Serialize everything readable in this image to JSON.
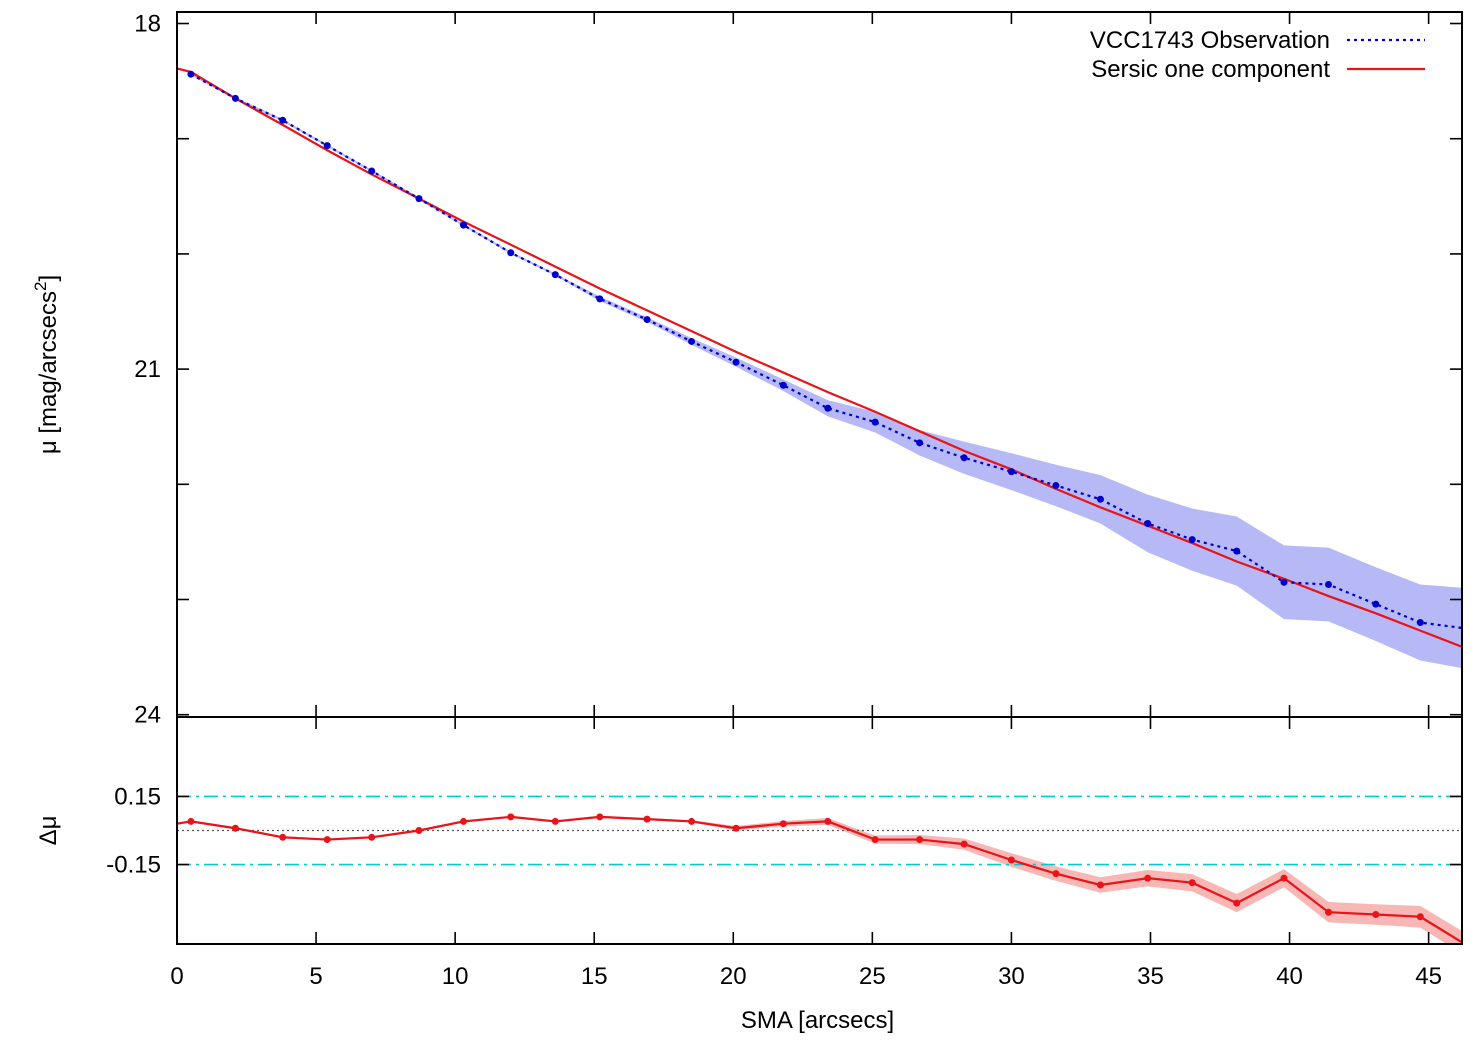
{
  "chart_data": [
    {
      "type": "line",
      "panel": "profile",
      "ylabel_main": "μ [mag/arcsecs",
      "ylabel_sup": "2",
      "ylabel_close": "]",
      "xlim": [
        0,
        46.2
      ],
      "ylim": [
        24,
        18
      ],
      "y_inverted": true,
      "yticks": [
        18,
        21,
        24
      ],
      "ytick_labels": [
        "18",
        "21",
        "24"
      ],
      "yminor_ticks": [
        19,
        20,
        22,
        23
      ],
      "legend_position": "top-right",
      "series": [
        {
          "name": "VCC1743 Observation",
          "color": "#0000cc",
          "band_color": "#b6b9f5",
          "style": "dotted-with-points",
          "x": [
            0.5,
            2.1,
            3.8,
            5.4,
            7.0,
            8.7,
            10.3,
            12.0,
            13.6,
            15.2,
            16.9,
            18.5,
            20.1,
            21.8,
            23.4,
            25.1,
            26.7,
            28.3,
            30.0,
            31.6,
            33.2,
            34.9,
            36.5,
            38.1,
            39.8,
            41.4,
            43.1,
            44.7,
            46.3
          ],
          "y": [
            18.44,
            18.65,
            18.84,
            19.06,
            19.28,
            19.52,
            19.75,
            19.99,
            20.18,
            20.39,
            20.57,
            20.76,
            20.94,
            21.14,
            21.34,
            21.46,
            21.64,
            21.77,
            21.89,
            22.01,
            22.13,
            22.34,
            22.48,
            22.58,
            22.85,
            22.87,
            23.04,
            23.2,
            23.25
          ],
          "band_lower": [
            18.43,
            18.64,
            18.83,
            19.05,
            19.27,
            19.51,
            19.74,
            19.98,
            20.17,
            20.37,
            20.55,
            20.73,
            20.9,
            21.09,
            21.27,
            21.37,
            21.53,
            21.63,
            21.73,
            21.83,
            21.92,
            22.09,
            22.21,
            22.28,
            22.53,
            22.55,
            22.72,
            22.87,
            22.9
          ],
          "band_upper": [
            18.45,
            18.66,
            18.85,
            19.07,
            19.29,
            19.53,
            19.76,
            20.0,
            20.19,
            20.41,
            20.59,
            20.79,
            20.98,
            21.19,
            21.41,
            21.55,
            21.75,
            21.91,
            22.05,
            22.19,
            22.34,
            22.59,
            22.75,
            22.88,
            23.17,
            23.19,
            23.36,
            23.53,
            23.6
          ]
        },
        {
          "name": "Sersic one component",
          "color": "#e8141a",
          "style": "solid",
          "x": [
            0.0,
            0.5,
            2.1,
            3.8,
            5.4,
            7.0,
            8.7,
            10.3,
            12.0,
            13.6,
            15.2,
            16.9,
            18.5,
            20.1,
            21.8,
            23.4,
            25.1,
            26.7,
            28.3,
            30.0,
            31.6,
            33.2,
            34.9,
            36.5,
            38.1,
            39.8,
            41.4,
            43.1,
            44.7,
            46.3
          ],
          "y": [
            18.39,
            18.42,
            18.65,
            18.88,
            19.1,
            19.31,
            19.52,
            19.72,
            19.92,
            20.11,
            20.3,
            20.49,
            20.67,
            20.85,
            21.03,
            21.2,
            21.37,
            21.54,
            21.71,
            21.87,
            22.04,
            22.2,
            22.36,
            22.51,
            22.67,
            22.82,
            22.97,
            23.12,
            23.27,
            23.42
          ]
        }
      ]
    },
    {
      "type": "line",
      "panel": "residual",
      "ylabel": "Δμ",
      "xlabel": "SMA [arcsecs]",
      "xlim": [
        0,
        46.2
      ],
      "ylim": [
        -0.5,
        0.5
      ],
      "xticks": [
        0,
        5,
        10,
        15,
        20,
        25,
        30,
        35,
        40,
        45
      ],
      "xtick_labels": [
        "0",
        "5",
        "10",
        "15",
        "20",
        "25",
        "30",
        "35",
        "40",
        "45"
      ],
      "yticks": [
        0.15,
        -0.15
      ],
      "ytick_labels": [
        "0.15",
        "-0.15"
      ],
      "reference_lines": [
        {
          "y": 0.15,
          "color": "#00cccc",
          "style": "dash-dot"
        },
        {
          "y": -0.15,
          "color": "#00cccc",
          "style": "dash-dot"
        },
        {
          "y": 0.0,
          "color": "#555555",
          "style": "dotted"
        }
      ],
      "series": [
        {
          "name": "",
          "color": "#e8141a",
          "band_color": "#f7b7b5",
          "x": [
            0.5,
            2.1,
            3.8,
            5.4,
            7.0,
            8.7,
            10.3,
            12.0,
            13.6,
            15.2,
            16.9,
            18.5,
            20.1,
            21.8,
            23.4,
            25.1,
            26.7,
            28.3,
            30.0,
            31.6,
            33.2,
            34.9,
            36.5,
            38.1,
            39.8,
            41.4,
            43.1,
            44.7,
            46.3
          ],
          "y": [
            0.04,
            0.01,
            -0.03,
            -0.04,
            -0.03,
            0.0,
            0.04,
            0.06,
            0.04,
            0.06,
            0.05,
            0.04,
            0.01,
            0.03,
            0.04,
            -0.04,
            -0.04,
            -0.06,
            -0.13,
            -0.19,
            -0.24,
            -0.21,
            -0.23,
            -0.32,
            -0.21,
            -0.36,
            -0.37,
            -0.38,
            -0.5
          ],
          "band_half_width": [
            0.005,
            0.005,
            0.005,
            0.005,
            0.005,
            0.005,
            0.005,
            0.005,
            0.005,
            0.005,
            0.005,
            0.005,
            0.01,
            0.012,
            0.015,
            0.018,
            0.02,
            0.025,
            0.03,
            0.032,
            0.034,
            0.036,
            0.038,
            0.04,
            0.04,
            0.045,
            0.045,
            0.048,
            0.05
          ]
        }
      ]
    }
  ]
}
